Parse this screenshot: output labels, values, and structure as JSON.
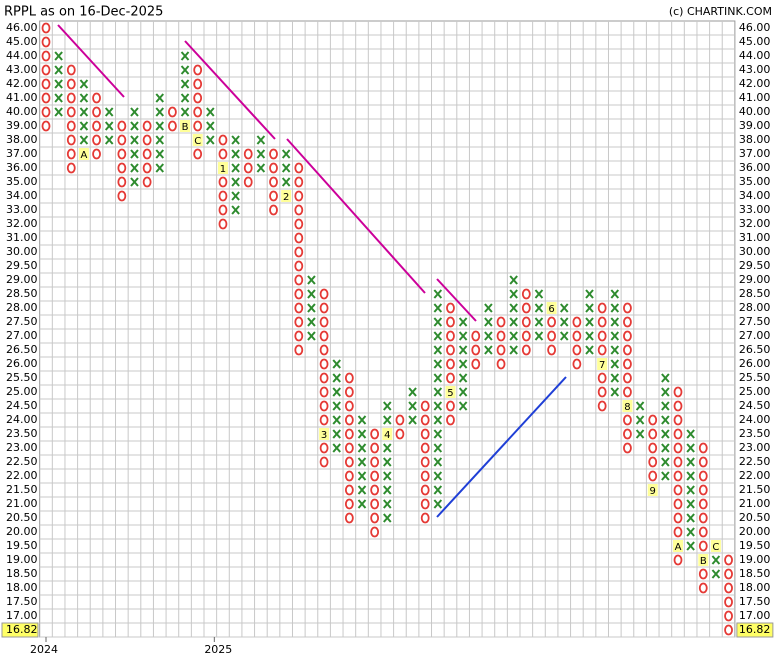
{
  "chart_data": {
    "type": "point-and-figure",
    "title": "RPPL as on 16-Dec-2025",
    "credit": "(c) CHARTINK.COM",
    "x_color": "#2e8b2e",
    "o_color": "#e53935",
    "marker_color": "#ffff99",
    "yticks": [
      {
        "value": 46,
        "label": "46.00"
      },
      {
        "value": 45,
        "label": "45.00"
      },
      {
        "value": 44,
        "label": "44.00"
      },
      {
        "value": 43,
        "label": "43.00"
      },
      {
        "value": 42,
        "label": "42.00"
      },
      {
        "value": 41,
        "label": "41.00"
      },
      {
        "value": 40,
        "label": "40.00"
      },
      {
        "value": 39,
        "label": "39.00"
      },
      {
        "value": 38,
        "label": "38.00"
      },
      {
        "value": 37,
        "label": "37.00"
      },
      {
        "value": 36,
        "label": "36.00"
      },
      {
        "value": 35,
        "label": "35.00"
      },
      {
        "value": 34,
        "label": "34.00"
      },
      {
        "value": 33,
        "label": "33.00"
      },
      {
        "value": 32,
        "label": "32.00"
      },
      {
        "value": 31,
        "label": "31.00"
      },
      {
        "value": 30,
        "label": "30.00"
      },
      {
        "value": 29.5,
        "label": "29.50"
      },
      {
        "value": 29,
        "label": "29.00"
      },
      {
        "value": 28.5,
        "label": "28.50"
      },
      {
        "value": 28,
        "label": "28.00"
      },
      {
        "value": 27.5,
        "label": "27.50"
      },
      {
        "value": 27,
        "label": "27.00"
      },
      {
        "value": 26.5,
        "label": "26.50"
      },
      {
        "value": 26,
        "label": "26.00"
      },
      {
        "value": 25.5,
        "label": "25.50"
      },
      {
        "value": 25,
        "label": "25.00"
      },
      {
        "value": 24.5,
        "label": "24.50"
      },
      {
        "value": 24,
        "label": "24.00"
      },
      {
        "value": 23.5,
        "label": "23.50"
      },
      {
        "value": 23,
        "label": "23.00"
      },
      {
        "value": 22.5,
        "label": "22.50"
      },
      {
        "value": 22,
        "label": "22.00"
      },
      {
        "value": 21.5,
        "label": "21.50"
      },
      {
        "value": 21,
        "label": "21.00"
      },
      {
        "value": 20.5,
        "label": "20.50"
      },
      {
        "value": 20,
        "label": "20.00"
      },
      {
        "value": 19.5,
        "label": "19.50"
      },
      {
        "value": 19,
        "label": "19.00"
      },
      {
        "value": 18.5,
        "label": "18.50"
      },
      {
        "value": 18,
        "label": "18.00"
      },
      {
        "value": 17.5,
        "label": "17.50"
      },
      {
        "value": 17,
        "label": "17.00"
      },
      16.82
    ],
    "year_labels": [
      {
        "label": "2024",
        "column": 0
      },
      {
        "label": "2025",
        "column": 13
      }
    ],
    "columns": [
      {
        "kind": "O",
        "high": 46,
        "low": 39
      },
      {
        "kind": "X",
        "high": 44,
        "low": 40
      },
      {
        "kind": "O",
        "high": 43,
        "low": 36
      },
      {
        "kind": "X",
        "high": 42,
        "low": 37,
        "markers": [
          {
            "value": 37,
            "label": "A"
          }
        ]
      },
      {
        "kind": "O",
        "high": 41,
        "low": 37
      },
      {
        "kind": "X",
        "high": 40,
        "low": 38
      },
      {
        "kind": "O",
        "high": 39,
        "low": 34
      },
      {
        "kind": "X",
        "high": 40,
        "low": 35
      },
      {
        "kind": "O",
        "high": 39,
        "low": 35
      },
      {
        "kind": "X",
        "high": 41,
        "low": 36
      },
      {
        "kind": "O",
        "high": 40,
        "low": 39
      },
      {
        "kind": "X",
        "high": 44,
        "low": 39,
        "markers": [
          {
            "value": 39,
            "label": "B"
          }
        ]
      },
      {
        "kind": "O",
        "high": 43,
        "low": 37,
        "markers": [
          {
            "value": 38,
            "label": "C"
          }
        ]
      },
      {
        "kind": "X",
        "high": 40,
        "low": 38
      },
      {
        "kind": "O",
        "high": 38,
        "low": 32,
        "markers": [
          {
            "value": 36,
            "label": "1"
          }
        ]
      },
      {
        "kind": "X",
        "high": 38,
        "low": 33
      },
      {
        "kind": "O",
        "high": 37,
        "low": 35
      },
      {
        "kind": "X",
        "high": 38,
        "low": 36
      },
      {
        "kind": "O",
        "high": 37,
        "low": 33
      },
      {
        "kind": "X",
        "high": 37,
        "low": 34,
        "markers": [
          {
            "value": 34,
            "label": "2"
          }
        ]
      },
      {
        "kind": "O",
        "high": 36,
        "low": 26.5
      },
      {
        "kind": "X",
        "high": 29,
        "low": 27
      },
      {
        "kind": "O",
        "high": 28.5,
        "low": 22.5,
        "markers": [
          {
            "value": 23.5,
            "label": "3"
          }
        ]
      },
      {
        "kind": "X",
        "high": 26,
        "low": 23
      },
      {
        "kind": "O",
        "high": 25.5,
        "low": 20.5
      },
      {
        "kind": "X",
        "high": 24,
        "low": 21
      },
      {
        "kind": "O",
        "high": 23.5,
        "low": 20
      },
      {
        "kind": "X",
        "high": 24.5,
        "low": 20.5,
        "markers": [
          {
            "value": 23.5,
            "label": "4"
          }
        ]
      },
      {
        "kind": "O",
        "high": 24,
        "low": 23.5
      },
      {
        "kind": "X",
        "high": 25,
        "low": 24
      },
      {
        "kind": "O",
        "high": 24.5,
        "low": 20.5
      },
      {
        "kind": "X",
        "high": 28.5,
        "low": 21
      },
      {
        "kind": "O",
        "high": 28,
        "low": 24,
        "markers": [
          {
            "value": 25,
            "label": "5"
          }
        ]
      },
      {
        "kind": "X",
        "high": 27.5,
        "low": 24.5
      },
      {
        "kind": "O",
        "high": 27,
        "low": 26
      },
      {
        "kind": "X",
        "high": 28,
        "low": 26.5
      },
      {
        "kind": "O",
        "high": 27.5,
        "low": 26
      },
      {
        "kind": "X",
        "high": 29,
        "low": 26.5
      },
      {
        "kind": "O",
        "high": 28.5,
        "low": 26.5
      },
      {
        "kind": "X",
        "high": 28.5,
        "low": 27
      },
      {
        "kind": "O",
        "high": 28,
        "low": 26.5,
        "markers": [
          {
            "value": 28,
            "label": "6"
          }
        ]
      },
      {
        "kind": "X",
        "high": 28,
        "low": 27
      },
      {
        "kind": "O",
        "high": 27.5,
        "low": 26
      },
      {
        "kind": "X",
        "high": 28.5,
        "low": 26.5
      },
      {
        "kind": "O",
        "high": 28,
        "low": 24.5,
        "markers": [
          {
            "value": 26,
            "label": "7"
          }
        ]
      },
      {
        "kind": "X",
        "high": 28.5,
        "low": 25
      },
      {
        "kind": "O",
        "high": 28,
        "low": 23,
        "markers": [
          {
            "value": 24.5,
            "label": "8"
          }
        ]
      },
      {
        "kind": "X",
        "high": 24.5,
        "low": 23.5
      },
      {
        "kind": "O",
        "high": 24,
        "low": 21.5,
        "markers": [
          {
            "value": 21.5,
            "label": "9"
          }
        ]
      },
      {
        "kind": "X",
        "high": 25.5,
        "low": 22
      },
      {
        "kind": "O",
        "high": 25,
        "low": 19,
        "markers": [
          {
            "value": 19.5,
            "label": "A"
          }
        ]
      },
      {
        "kind": "X",
        "high": 23.5,
        "low": 19.5
      },
      {
        "kind": "O",
        "high": 23,
        "low": 18,
        "markers": [
          {
            "value": 19,
            "label": "B"
          }
        ]
      },
      {
        "kind": "X",
        "high": 19.5,
        "low": 18.5,
        "markers": [
          {
            "value": 19.5,
            "label": "C"
          }
        ]
      },
      {
        "kind": "O",
        "high": 19,
        "low": 16.82
      }
    ]
  }
}
